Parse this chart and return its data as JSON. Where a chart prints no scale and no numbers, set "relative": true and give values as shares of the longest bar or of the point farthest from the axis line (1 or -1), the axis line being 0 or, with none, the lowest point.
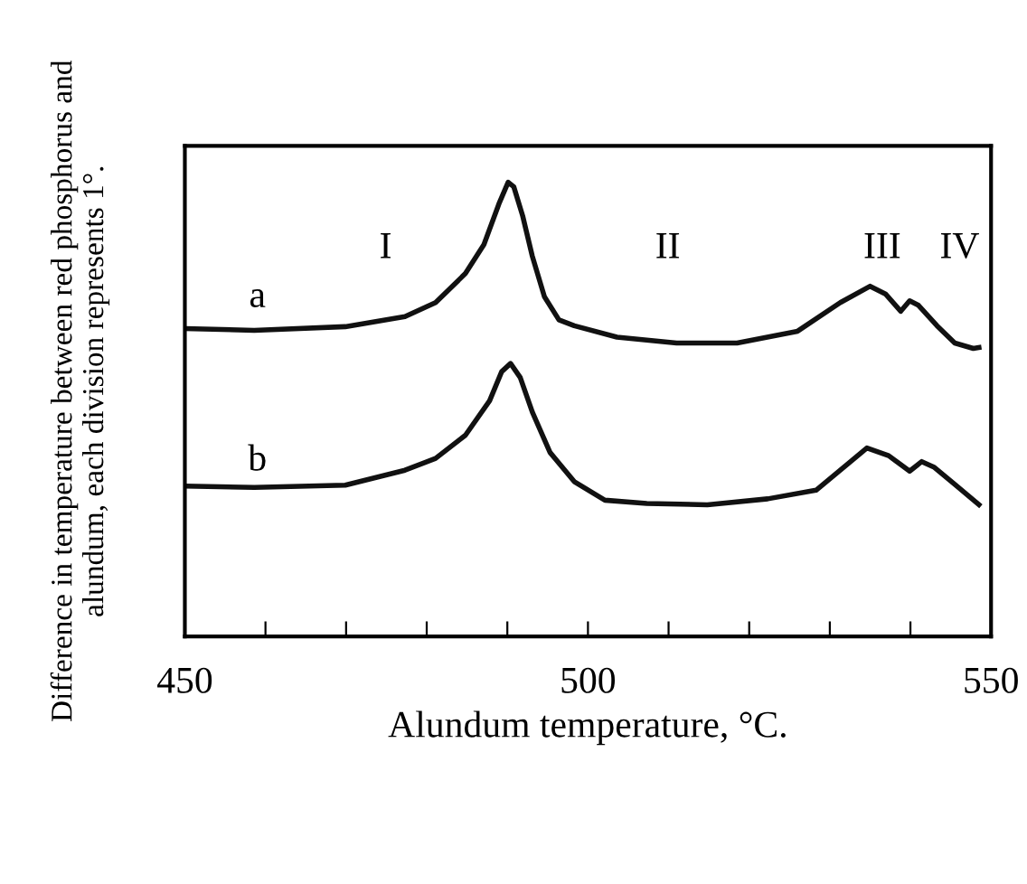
{
  "chart_data": {
    "type": "line",
    "relative": true,
    "xlabel": "Alundum temperature, °C.",
    "ylabel": "Difference in temperature between red phosphorus and\nalundum, each division represents 1°.",
    "xlim": [
      450,
      550
    ],
    "xticks": [
      450,
      {
        "value": 460,
        "label": null
      },
      {
        "value": 470,
        "label": null
      },
      {
        "value": 480,
        "label": null
      },
      {
        "value": 490,
        "label": null
      },
      500,
      {
        "value": 510,
        "label": null
      },
      {
        "value": 520,
        "label": null
      },
      {
        "value": 530,
        "label": null
      },
      {
        "value": 540,
        "label": null
      },
      550
    ],
    "series": [
      {
        "color": "#111111",
        "x": [
          450,
          458.6,
          469.9,
          477.3,
          481.1,
          484.8,
          487.1,
          488.95,
          490.1,
          490.8,
          491.9,
          493.1,
          494.6,
          496.4,
          498.3,
          503.6,
          511.0,
          518.5,
          526.0,
          531.3,
          535.0,
          536.9,
          538.8,
          539.9,
          541.0,
          543.3,
          545.5,
          547.8,
          548.5
        ],
        "values": [
          0.678,
          0.674,
          0.682,
          0.704,
          0.735,
          0.799,
          0.863,
          0.952,
          1.0,
          0.99,
          0.926,
          0.837,
          0.748,
          0.697,
          0.684,
          0.659,
          0.646,
          0.646,
          0.672,
          0.735,
          0.771,
          0.754,
          0.716,
          0.739,
          0.729,
          0.684,
          0.646,
          0.634,
          0.636
        ]
      },
      {
        "color": "#111111",
        "x": [
          450,
          458.6,
          469.9,
          477.3,
          481.1,
          484.8,
          487.8,
          489.3,
          490.4,
          491.6,
          493.1,
          495.3,
          498.3,
          502.1,
          507.3,
          514.8,
          522.3,
          528.3,
          531.3,
          534.6,
          537.3,
          539.9,
          541.4,
          542.9,
          545.5,
          548.5
        ],
        "values": [
          0.331,
          0.328,
          0.333,
          0.366,
          0.392,
          0.443,
          0.519,
          0.583,
          0.601,
          0.57,
          0.494,
          0.405,
          0.341,
          0.3,
          0.293,
          0.29,
          0.303,
          0.322,
          0.366,
          0.415,
          0.398,
          0.364,
          0.385,
          0.373,
          0.335,
          0.29
        ]
      }
    ],
    "annotations": [
      "a",
      "b",
      "I",
      "II",
      "III",
      "IV"
    ],
    "grid": false,
    "legend": false,
    "marker": "none",
    "line_style": "solid"
  }
}
